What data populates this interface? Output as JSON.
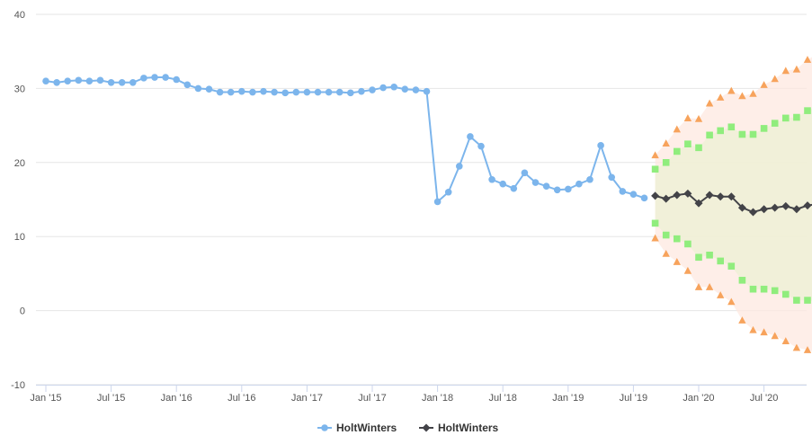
{
  "chart_data": {
    "type": "line",
    "title": "",
    "xlabel": "",
    "ylabel": "",
    "ylim": [
      -10,
      40
    ],
    "y_ticks": [
      -10,
      0,
      10,
      20,
      30,
      40
    ],
    "x_tick_labels": [
      "Jan '15",
      "Jul '15",
      "Jan '16",
      "Jul '16",
      "Jan '17",
      "Jul '17",
      "Jan '18",
      "Jul '18",
      "Jan '19",
      "Jul '19",
      "Jan '20",
      "Jul '20"
    ],
    "grid": "horizontal",
    "legend_position": "bottom-center",
    "x_start": "2015-01",
    "actual": {
      "name": "HoltWinters",
      "color": "#7cb5ec",
      "marker": "circle",
      "values": [
        31.0,
        30.8,
        31.0,
        31.1,
        31.0,
        31.1,
        30.8,
        30.8,
        30.8,
        31.4,
        31.5,
        31.5,
        31.2,
        30.5,
        30.0,
        29.9,
        29.5,
        29.5,
        29.6,
        29.5,
        29.6,
        29.5,
        29.4,
        29.5,
        29.5,
        29.5,
        29.5,
        29.5,
        29.4,
        29.6,
        29.8,
        30.1,
        30.2,
        29.9,
        29.8,
        29.6,
        14.7,
        16.0,
        19.5,
        23.5,
        22.2,
        17.7,
        17.1,
        16.5,
        18.6,
        17.3,
        16.8,
        16.3,
        16.4,
        17.1,
        17.7,
        22.3,
        18.0,
        16.1,
        15.7,
        15.2
      ]
    },
    "forecast": {
      "name": "HoltWinters",
      "color": "#434348",
      "marker": "diamond",
      "values": [
        15.5,
        15.1,
        15.6,
        15.8,
        14.5,
        15.6,
        15.4,
        15.4,
        13.9,
        13.3,
        13.7,
        13.9,
        14.1,
        13.7,
        14.2,
        14.4
      ]
    },
    "band_80": {
      "color": "#90ed7d",
      "marker": "square",
      "upper": [
        19.1,
        20.0,
        21.5,
        22.5,
        22.0,
        23.7,
        24.3,
        24.8,
        23.8,
        23.8,
        24.6,
        25.3,
        26.0,
        26.1,
        27.0,
        27.6
      ],
      "lower": [
        11.8,
        10.2,
        9.7,
        9.0,
        7.2,
        7.5,
        6.7,
        6.0,
        4.1,
        2.9,
        2.9,
        2.7,
        2.2,
        1.4,
        1.4,
        1.2
      ]
    },
    "band_95": {
      "color": "#f7a35c",
      "marker": "triangle",
      "upper": [
        21.0,
        22.6,
        24.5,
        26.0,
        25.9,
        28.0,
        28.8,
        29.7,
        29.0,
        29.3,
        30.5,
        31.3,
        32.4,
        32.6,
        33.9,
        34.7
      ],
      "lower": [
        9.8,
        7.7,
        6.6,
        5.4,
        3.2,
        3.2,
        2.1,
        1.2,
        -1.3,
        -2.6,
        -2.9,
        -3.4,
        -4.1,
        -5.0,
        -5.3,
        -5.8
      ]
    },
    "legend": [
      {
        "label": "HoltWinters",
        "color": "#7cb5ec",
        "marker": "circle"
      },
      {
        "label": "HoltWinters",
        "color": "#434348",
        "marker": "diamond"
      }
    ]
  }
}
